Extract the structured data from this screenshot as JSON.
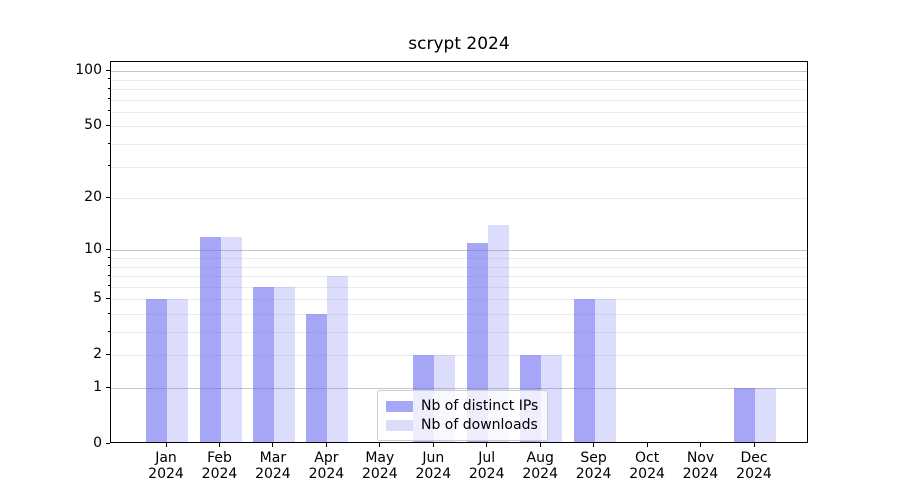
{
  "title": "scrypt 2024",
  "chart_data": {
    "type": "bar",
    "title": "scrypt 2024",
    "categories": [
      "Jan 2024",
      "Feb 2024",
      "Mar 2024",
      "Apr 2024",
      "May 2024",
      "Jun 2024",
      "Jul 2024",
      "Aug 2024",
      "Sep 2024",
      "Oct 2024",
      "Nov 2024",
      "Dec 2024"
    ],
    "series": [
      {
        "name": "Nb of distinct IPs",
        "color": "rgba(102,102,240,0.58)",
        "legend_color": "#a6a6f8",
        "values": [
          5,
          12,
          6,
          4,
          0,
          2,
          11,
          2,
          5,
          0,
          0,
          1
        ]
      },
      {
        "name": "Nb of downloads",
        "color": "rgba(102,102,240,0.23)",
        "legend_color": "#dcdcfa",
        "values": [
          5,
          12,
          6,
          7,
          0,
          2,
          14,
          2,
          5,
          0,
          0,
          1
        ]
      }
    ],
    "xlabel": "",
    "ylabel": "",
    "yscale": "log1p",
    "ylim": [
      0,
      111
    ],
    "ytick_labels": [
      0,
      1,
      2,
      5,
      10,
      20,
      50,
      100
    ],
    "major_gridlines": [
      1,
      10,
      100
    ],
    "minor_gridlines": [
      2,
      3,
      4,
      5,
      6,
      7,
      8,
      9,
      20,
      30,
      40,
      50,
      60,
      70,
      80,
      90
    ],
    "grid": "both",
    "legend_position": "lower center"
  },
  "colors": {
    "major_grid": "#c6c6c6",
    "minor_grid": "#ececec",
    "axis": "#000000",
    "background": "#ffffff"
  }
}
